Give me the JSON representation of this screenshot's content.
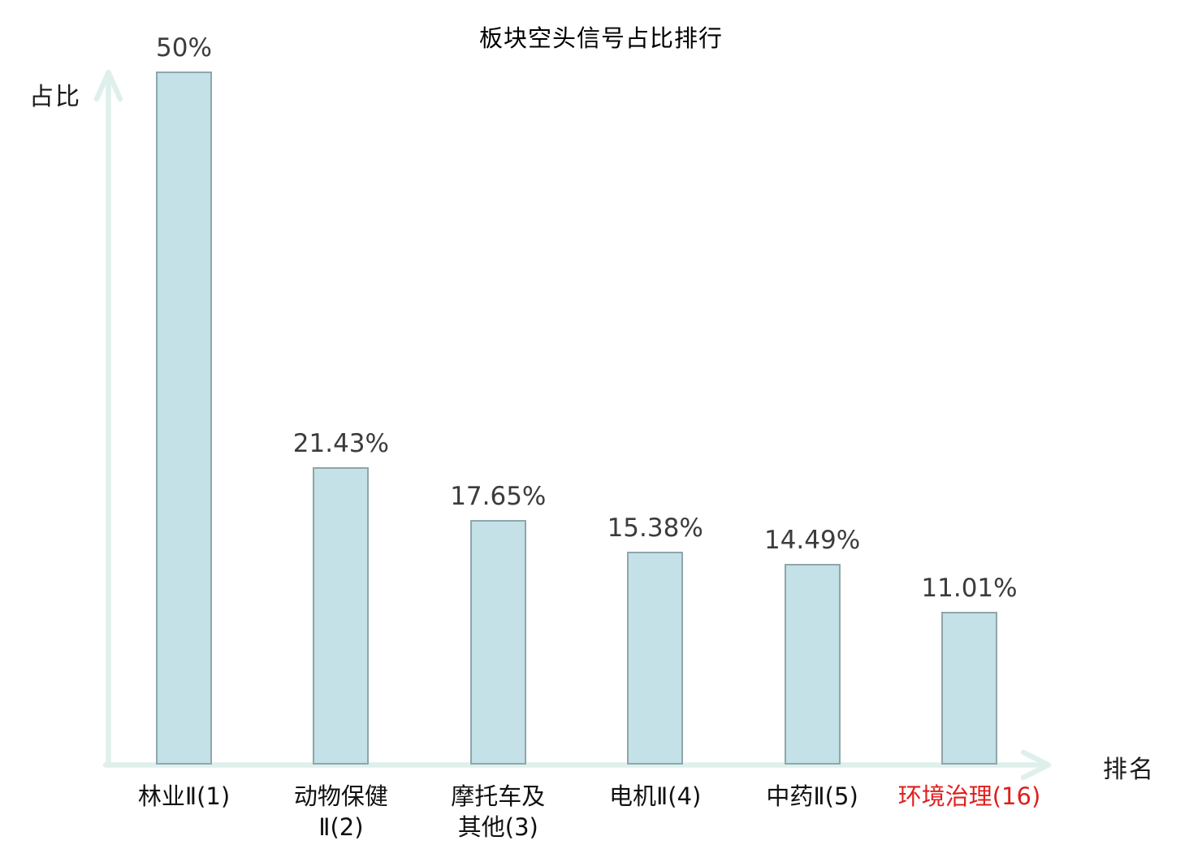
{
  "chart_data": {
    "type": "bar",
    "title": "板块空头信号占比排行",
    "xlabel": "排名",
    "ylabel": "占比",
    "categories": [
      "林业Ⅱ(1)",
      "动物保健Ⅱ(2)",
      "摩托车及其他(3)",
      "电机Ⅱ(4)",
      "中药Ⅱ(5)",
      "环境治理(16)"
    ],
    "category_lines": [
      [
        "林业Ⅱ(1)"
      ],
      [
        "动物保健",
        "Ⅱ(2)"
      ],
      [
        "摩托车及",
        "其他(3)"
      ],
      [
        "电机Ⅱ(4)"
      ],
      [
        "中药Ⅱ(5)"
      ],
      [
        "环境治理(16)"
      ]
    ],
    "values": [
      50,
      21.43,
      17.65,
      15.38,
      14.49,
      11.01
    ],
    "value_labels": [
      "50%",
      "21.43%",
      "17.65%",
      "15.38%",
      "14.49%",
      "11.01%"
    ],
    "highlight_index": 5,
    "ylim": [
      0,
      50
    ],
    "grid": false,
    "legend": null,
    "colors": {
      "bar_fill": "#c3e1e6",
      "bar_border": "#8fa6aa",
      "axis": "#dff0ec",
      "value_label": "#3c3c3c",
      "category_label": "#111111",
      "highlight_label": "#e01e1e",
      "title": "#000000"
    }
  }
}
